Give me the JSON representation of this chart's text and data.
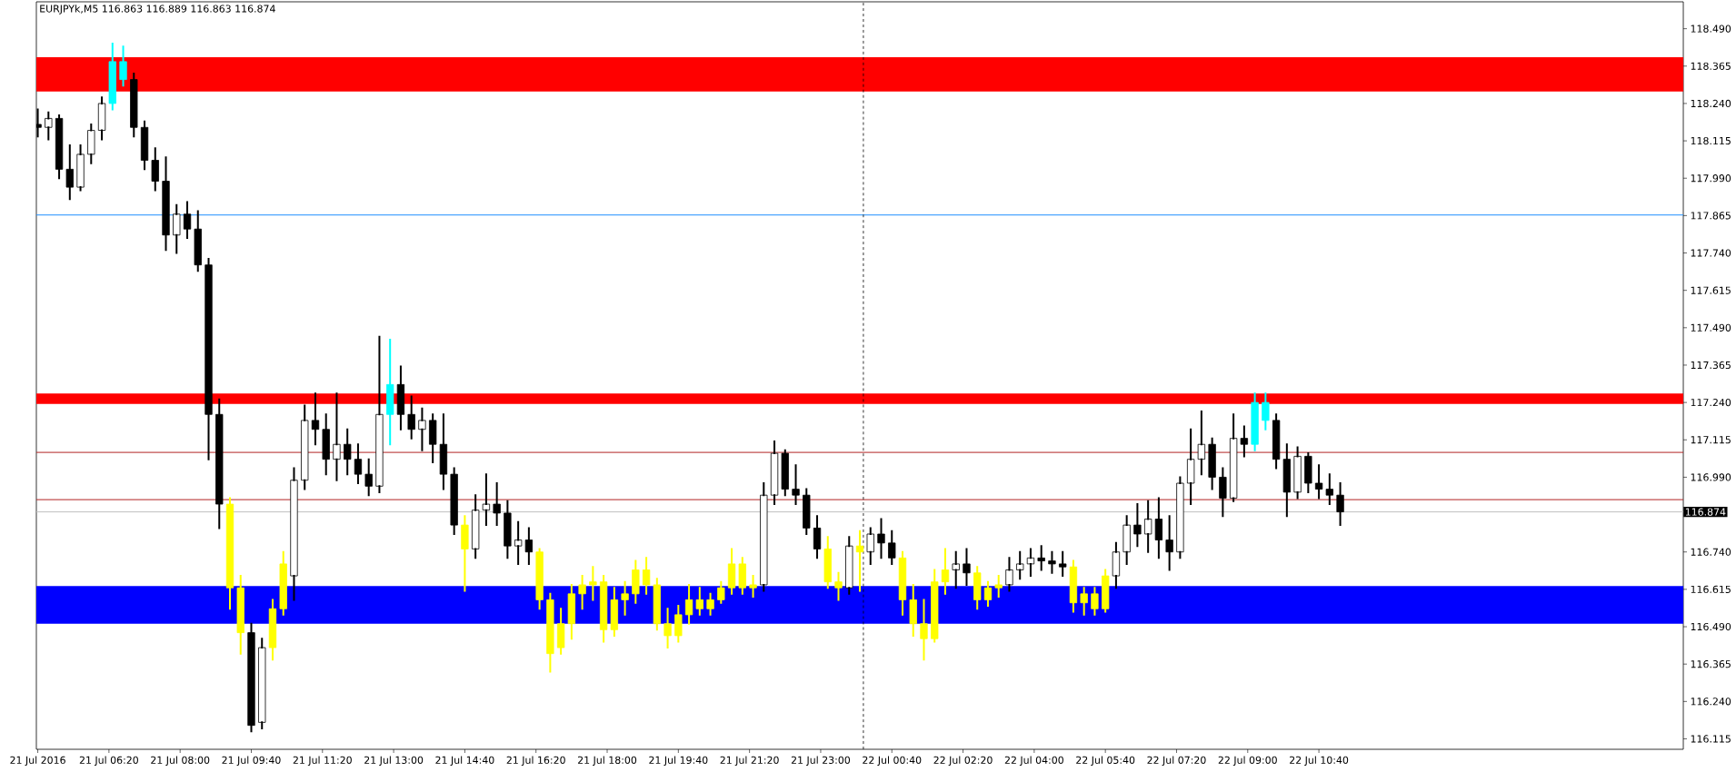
{
  "chart_data": {
    "type": "candlestick",
    "title": "EURJPYk,M5  116.863 116.889 116.863 116.874",
    "x": [
      "2016-07-21T04:40",
      "2016-07-21T04:55",
      "2016-07-21T05:10",
      "2016-07-21T05:25",
      "2016-07-21T05:40",
      "2016-07-21T05:55",
      "2016-07-21T06:10",
      "2016-07-21T06:25",
      "2016-07-21T06:40",
      "2016-07-21T06:55",
      "2016-07-21T07:10",
      "2016-07-21T07:25",
      "2016-07-21T07:40",
      "2016-07-21T07:55",
      "2016-07-21T08:10",
      "2016-07-21T08:25",
      "2016-07-21T08:40",
      "2016-07-21T08:55",
      "2016-07-21T09:10",
      "2016-07-21T09:25",
      "2016-07-21T09:40",
      "2016-07-21T09:55",
      "2016-07-21T10:10",
      "2016-07-21T10:25",
      "2016-07-21T10:40",
      "2016-07-21T10:55",
      "2016-07-21T11:10",
      "2016-07-21T11:25",
      "2016-07-21T11:40",
      "2016-07-21T11:55",
      "2016-07-21T12:10",
      "2016-07-21T12:25",
      "2016-07-21T12:40",
      "2016-07-21T12:55",
      "2016-07-21T13:10",
      "2016-07-21T13:25",
      "2016-07-21T13:40",
      "2016-07-21T13:55",
      "2016-07-21T14:10",
      "2016-07-21T14:25",
      "2016-07-21T14:40",
      "2016-07-21T14:55",
      "2016-07-21T15:10",
      "2016-07-21T15:25",
      "2016-07-21T15:40",
      "2016-07-21T15:55",
      "2016-07-21T16:10",
      "2016-07-21T16:25",
      "2016-07-21T16:40",
      "2016-07-21T16:55",
      "2016-07-21T17:10",
      "2016-07-21T17:25",
      "2016-07-21T17:40",
      "2016-07-21T17:55",
      "2016-07-21T18:10",
      "2016-07-21T18:25",
      "2016-07-21T18:40",
      "2016-07-21T18:55",
      "2016-07-21T19:10",
      "2016-07-21T19:25",
      "2016-07-21T19:40",
      "2016-07-21T19:55",
      "2016-07-21T20:10",
      "2016-07-21T20:25",
      "2016-07-21T20:40",
      "2016-07-21T20:55",
      "2016-07-21T21:10",
      "2016-07-21T21:25",
      "2016-07-21T21:40",
      "2016-07-21T21:55",
      "2016-07-21T22:10",
      "2016-07-21T22:25",
      "2016-07-21T22:40",
      "2016-07-21T22:55",
      "2016-07-21T23:10",
      "2016-07-21T23:25",
      "2016-07-21T23:40",
      "2016-07-21T23:55",
      "2016-07-22T00:10",
      "2016-07-22T00:25",
      "2016-07-22T00:40",
      "2016-07-22T00:55",
      "2016-07-22T01:10",
      "2016-07-22T01:25",
      "2016-07-22T01:40",
      "2016-07-22T01:55",
      "2016-07-22T02:10",
      "2016-07-22T02:25",
      "2016-07-22T02:40",
      "2016-07-22T02:55",
      "2016-07-22T03:10",
      "2016-07-22T03:25",
      "2016-07-22T03:40",
      "2016-07-22T03:55",
      "2016-07-22T04:10",
      "2016-07-22T04:25",
      "2016-07-22T04:40",
      "2016-07-22T04:55",
      "2016-07-22T05:10",
      "2016-07-22T05:25",
      "2016-07-22T05:40",
      "2016-07-22T05:55",
      "2016-07-22T06:10",
      "2016-07-22T06:25",
      "2016-07-22T06:40",
      "2016-07-22T06:55",
      "2016-07-22T07:10",
      "2016-07-22T07:25",
      "2016-07-22T07:40",
      "2016-07-22T07:55",
      "2016-07-22T08:10",
      "2016-07-22T08:25",
      "2016-07-22T08:40",
      "2016-07-22T08:55",
      "2016-07-22T09:10",
      "2016-07-22T09:25",
      "2016-07-22T09:40",
      "2016-07-22T09:55",
      "2016-07-22T10:10",
      "2016-07-22T10:25",
      "2016-07-22T10:40",
      "2016-07-22T10:55",
      "2016-07-22T11:10"
    ],
    "ohlc": [
      [
        118.17,
        118.22,
        118.13,
        118.16
      ],
      [
        118.16,
        118.21,
        118.12,
        118.19
      ],
      [
        118.19,
        118.2,
        117.99,
        118.02
      ],
      [
        118.02,
        118.1,
        117.92,
        117.96
      ],
      [
        117.96,
        118.1,
        117.95,
        118.07
      ],
      [
        118.07,
        118.17,
        118.04,
        118.15
      ],
      [
        118.15,
        118.26,
        118.12,
        118.24
      ],
      [
        118.24,
        118.44,
        118.22,
        118.38
      ],
      [
        118.38,
        118.43,
        118.3,
        118.32
      ],
      [
        118.32,
        118.34,
        118.13,
        118.16
      ],
      [
        118.16,
        118.18,
        118.02,
        118.05
      ],
      [
        118.05,
        118.09,
        117.95,
        117.98
      ],
      [
        117.98,
        118.06,
        117.75,
        117.8
      ],
      [
        117.8,
        117.9,
        117.74,
        117.87
      ],
      [
        117.87,
        117.91,
        117.79,
        117.82
      ],
      [
        117.82,
        117.88,
        117.68,
        117.7
      ],
      [
        117.7,
        117.72,
        117.05,
        117.2
      ],
      [
        117.2,
        117.25,
        116.82,
        116.9
      ],
      [
        116.9,
        116.92,
        116.55,
        116.62
      ],
      [
        116.62,
        116.66,
        116.4,
        116.47
      ],
      [
        116.47,
        116.5,
        116.14,
        116.16
      ],
      [
        116.17,
        116.45,
        116.15,
        116.42
      ],
      [
        116.42,
        116.58,
        116.38,
        116.55
      ],
      [
        116.55,
        116.74,
        116.53,
        116.7
      ],
      [
        116.66,
        117.02,
        116.58,
        116.98
      ],
      [
        116.98,
        117.23,
        116.95,
        117.18
      ],
      [
        117.18,
        117.27,
        117.1,
        117.15
      ],
      [
        117.15,
        117.2,
        117.0,
        117.05
      ],
      [
        117.05,
        117.27,
        116.98,
        117.1
      ],
      [
        117.1,
        117.15,
        117.0,
        117.05
      ],
      [
        117.05,
        117.1,
        116.97,
        117.0
      ],
      [
        117.0,
        117.05,
        116.93,
        116.96
      ],
      [
        116.96,
        117.46,
        116.94,
        117.2
      ],
      [
        117.2,
        117.45,
        117.1,
        117.3
      ],
      [
        117.3,
        117.36,
        117.15,
        117.2
      ],
      [
        117.2,
        117.26,
        117.12,
        117.15
      ],
      [
        117.15,
        117.22,
        117.08,
        117.18
      ],
      [
        117.18,
        117.2,
        117.04,
        117.1
      ],
      [
        117.1,
        117.2,
        116.95,
        117.0
      ],
      [
        117.0,
        117.02,
        116.8,
        116.83
      ],
      [
        116.83,
        116.86,
        116.61,
        116.75
      ],
      [
        116.75,
        116.93,
        116.72,
        116.88
      ],
      [
        116.88,
        117.0,
        116.83,
        116.9
      ],
      [
        116.9,
        116.97,
        116.83,
        116.87
      ],
      [
        116.87,
        116.91,
        116.72,
        116.76
      ],
      [
        116.76,
        116.84,
        116.7,
        116.78
      ],
      [
        116.78,
        116.82,
        116.7,
        116.74
      ],
      [
        116.74,
        116.75,
        116.55,
        116.58
      ],
      [
        116.58,
        116.6,
        116.34,
        116.4
      ],
      [
        116.42,
        116.55,
        116.4,
        116.5
      ],
      [
        116.5,
        116.63,
        116.45,
        116.6
      ],
      [
        116.6,
        116.66,
        116.55,
        116.63
      ],
      [
        116.63,
        116.69,
        116.58,
        116.64
      ],
      [
        116.64,
        116.66,
        116.44,
        116.48
      ],
      [
        116.48,
        116.62,
        116.46,
        116.58
      ],
      [
        116.58,
        116.64,
        116.53,
        116.6
      ],
      [
        116.6,
        116.71,
        116.57,
        116.68
      ],
      [
        116.68,
        116.72,
        116.6,
        116.63
      ],
      [
        116.63,
        116.65,
        116.48,
        116.5
      ],
      [
        116.5,
        116.55,
        116.42,
        116.46
      ],
      [
        116.46,
        116.56,
        116.44,
        116.53
      ],
      [
        116.53,
        116.63,
        116.5,
        116.58
      ],
      [
        116.58,
        116.62,
        116.53,
        116.55
      ],
      [
        116.55,
        116.6,
        116.53,
        116.58
      ],
      [
        116.58,
        116.64,
        116.57,
        116.62
      ],
      [
        116.62,
        116.75,
        116.6,
        116.7
      ],
      [
        116.7,
        116.72,
        116.6,
        116.62
      ],
      [
        116.62,
        116.66,
        116.59,
        116.63
      ],
      [
        116.63,
        116.97,
        116.61,
        116.93
      ],
      [
        116.93,
        117.11,
        116.9,
        117.07
      ],
      [
        117.07,
        117.08,
        116.93,
        116.95
      ],
      [
        116.95,
        117.03,
        116.9,
        116.93
      ],
      [
        116.93,
        116.95,
        116.8,
        116.82
      ],
      [
        116.82,
        116.86,
        116.72,
        116.75
      ],
      [
        116.75,
        116.79,
        116.62,
        116.64
      ],
      [
        116.64,
        116.67,
        116.58,
        116.62
      ],
      [
        116.62,
        116.79,
        116.6,
        116.76
      ],
      [
        116.76,
        116.81,
        116.61,
        116.74
      ],
      [
        116.74,
        116.82,
        116.7,
        116.8
      ],
      [
        116.8,
        116.85,
        116.72,
        116.77
      ],
      [
        116.77,
        116.81,
        116.7,
        116.72
      ],
      [
        116.72,
        116.74,
        116.53,
        116.58
      ],
      [
        116.58,
        116.63,
        116.46,
        116.5
      ],
      [
        116.5,
        116.58,
        116.38,
        116.45
      ],
      [
        116.45,
        116.68,
        116.44,
        116.64
      ],
      [
        116.64,
        116.75,
        116.6,
        116.68
      ],
      [
        116.68,
        116.74,
        116.62,
        116.7
      ],
      [
        116.7,
        116.75,
        116.63,
        116.67
      ],
      [
        116.67,
        116.69,
        116.55,
        116.58
      ],
      [
        116.58,
        116.64,
        116.56,
        116.62
      ],
      [
        116.62,
        116.66,
        116.59,
        116.63
      ],
      [
        116.63,
        116.72,
        116.61,
        116.68
      ],
      [
        116.68,
        116.74,
        116.65,
        116.7
      ],
      [
        116.7,
        116.75,
        116.66,
        116.72
      ],
      [
        116.72,
        116.76,
        116.68,
        116.71
      ],
      [
        116.71,
        116.74,
        116.67,
        116.7
      ],
      [
        116.7,
        116.74,
        116.66,
        116.69
      ],
      [
        116.69,
        116.71,
        116.54,
        116.57
      ],
      [
        116.57,
        116.62,
        116.53,
        116.6
      ],
      [
        116.6,
        116.62,
        116.53,
        116.55
      ],
      [
        116.55,
        116.68,
        116.54,
        116.66
      ],
      [
        116.66,
        116.77,
        116.62,
        116.74
      ],
      [
        116.74,
        116.86,
        116.7,
        116.83
      ],
      [
        116.83,
        116.9,
        116.76,
        116.8
      ],
      [
        116.8,
        116.91,
        116.74,
        116.85
      ],
      [
        116.85,
        116.92,
        116.72,
        116.78
      ],
      [
        116.78,
        116.86,
        116.68,
        116.74
      ],
      [
        116.74,
        116.99,
        116.72,
        116.97
      ],
      [
        116.97,
        117.15,
        116.9,
        117.05
      ],
      [
        117.05,
        117.21,
        117.0,
        117.1
      ],
      [
        117.1,
        117.12,
        116.95,
        116.99
      ],
      [
        116.99,
        117.02,
        116.86,
        116.92
      ],
      [
        116.92,
        117.2,
        116.91,
        117.12
      ],
      [
        117.12,
        117.16,
        117.06,
        117.1
      ],
      [
        117.1,
        117.27,
        117.08,
        117.24
      ],
      [
        117.24,
        117.27,
        117.15,
        117.18
      ],
      [
        117.18,
        117.2,
        117.02,
        117.05
      ],
      [
        117.05,
        117.1,
        116.86,
        116.94
      ],
      [
        116.94,
        117.09,
        116.92,
        117.06
      ],
      [
        117.06,
        117.07,
        116.94,
        116.97
      ],
      [
        116.97,
        117.03,
        116.92,
        116.95
      ],
      [
        116.95,
        117.0,
        116.9,
        116.93
      ],
      [
        116.93,
        116.97,
        116.83,
        116.874
      ]
    ],
    "colors": [
      "#000000",
      "#ffffff",
      "#000000",
      "#000000",
      "#ffffff",
      "#ffffff",
      "#ffffff",
      "#00ffff",
      "#00ffff",
      "#000000",
      "#000000",
      "#000000",
      "#000000",
      "#ffffff",
      "#000000",
      "#000000",
      "#000000",
      "#000000",
      "#ffff00",
      "#ffff00",
      "#000000",
      "#ffffff",
      "#ffff00",
      "#ffff00",
      "#ffffff",
      "#ffffff",
      "#000000",
      "#000000",
      "#ffffff",
      "#000000",
      "#000000",
      "#000000",
      "#ffffff",
      "#00ffff",
      "#000000",
      "#000000",
      "#ffffff",
      "#000000",
      "#000000",
      "#000000",
      "#ffff00",
      "#ffffff",
      "#ffffff",
      "#000000",
      "#000000",
      "#ffffff",
      "#000000",
      "#ffff00",
      "#ffff00",
      "#ffff00",
      "#ffff00",
      "#ffff00",
      "#ffff00",
      "#ffff00",
      "#ffff00",
      "#ffff00",
      "#ffff00",
      "#ffff00",
      "#ffff00",
      "#ffff00",
      "#ffff00",
      "#ffff00",
      "#ffff00",
      "#ffff00",
      "#ffff00",
      "#ffff00",
      "#ffff00",
      "#ffff00",
      "#ffffff",
      "#ffffff",
      "#000000",
      "#000000",
      "#000000",
      "#000000",
      "#ffff00",
      "#ffff00",
      "#ffffff",
      "#ffff00",
      "#ffffff",
      "#000000",
      "#000000",
      "#ffff00",
      "#ffff00",
      "#ffff00",
      "#ffff00",
      "#ffff00",
      "#ffffff",
      "#000000",
      "#ffff00",
      "#ffff00",
      "#ffff00",
      "#ffffff",
      "#ffffff",
      "#ffffff",
      "#000000",
      "#000000",
      "#000000",
      "#ffff00",
      "#ffff00",
      "#ffff00",
      "#ffff00",
      "#ffffff",
      "#ffffff",
      "#000000",
      "#ffffff",
      "#000000",
      "#000000",
      "#ffffff",
      "#ffffff",
      "#ffffff",
      "#000000",
      "#000000",
      "#ffffff",
      "#000000",
      "#00ffff",
      "#00ffff",
      "#000000",
      "#000000",
      "#ffffff",
      "#000000",
      "#000000",
      "#000000",
      "#000000"
    ],
    "xlim": [
      "2016-07-21T04:38",
      "2016-07-22T19:12"
    ],
    "ylim": [
      116.08,
      118.58
    ],
    "xticks": [
      {
        "value": "2016-07-21T04:40",
        "label": "21 Jul 2016"
      },
      {
        "value": "2016-07-21T06:20",
        "label": "21 Jul 06:20"
      },
      {
        "value": "2016-07-21T08:00",
        "label": "21 Jul 08:00"
      },
      {
        "value": "2016-07-21T09:40",
        "label": "21 Jul 09:40"
      },
      {
        "value": "2016-07-21T11:20",
        "label": "21 Jul 11:20"
      },
      {
        "value": "2016-07-21T13:00",
        "label": "21 Jul 13:00"
      },
      {
        "value": "2016-07-21T14:40",
        "label": "21 Jul 14:40"
      },
      {
        "value": "2016-07-21T16:20",
        "label": "21 Jul 16:20"
      },
      {
        "value": "2016-07-21T18:00",
        "label": "21 Jul 18:00"
      },
      {
        "value": "2016-07-21T19:40",
        "label": "21 Jul 19:40"
      },
      {
        "value": "2016-07-21T21:20",
        "label": "21 Jul 21:20"
      },
      {
        "value": "2016-07-21T23:00",
        "label": "21 Jul 23:00"
      },
      {
        "value": "2016-07-22T00:40",
        "label": "22 Jul 00:40"
      },
      {
        "value": "2016-07-22T02:20",
        "label": "22 Jul 02:20"
      },
      {
        "value": "2016-07-22T04:00",
        "label": "22 Jul 04:00"
      },
      {
        "value": "2016-07-22T05:40",
        "label": "22 Jul 05:40"
      },
      {
        "value": "2016-07-22T07:20",
        "label": "22 Jul 07:20"
      },
      {
        "value": "2016-07-22T09:00",
        "label": "22 Jul 09:00"
      },
      {
        "value": "2016-07-22T10:40",
        "label": "22 Jul 10:40"
      }
    ],
    "yticks": [
      116.115,
      {
        "value": 116.24,
        "label": "116.240"
      },
      116.365,
      {
        "value": 116.49,
        "label": "116.490"
      },
      116.615,
      {
        "value": 116.74,
        "label": "116.740"
      },
      {
        "value": 116.99,
        "label": "116.990"
      },
      117.115,
      {
        "value": 117.24,
        "label": "117.240"
      },
      117.365,
      {
        "value": 117.49,
        "label": "117.490"
      },
      117.615,
      {
        "value": 117.74,
        "label": "117.740"
      },
      117.865,
      {
        "value": 117.99,
        "label": "117.990"
      },
      118.115,
      {
        "value": 118.24,
        "label": "118.240"
      },
      118.365,
      {
        "value": 118.49,
        "label": "118.490"
      }
    ],
    "bands": [
      {
        "axis": "y",
        "from": 118.28,
        "to": 118.395,
        "color": "#ff0000"
      },
      {
        "axis": "y",
        "from": 117.235,
        "to": 117.27,
        "color": "#ff0000"
      },
      {
        "axis": "y",
        "from": 116.5,
        "to": 116.626,
        "color": "#0000ff"
      }
    ],
    "ref_lines": [
      {
        "axis": "y",
        "value": 116.874,
        "label": "116.874",
        "color": "#c0c0c0"
      },
      {
        "axis": "y",
        "value": 117.867,
        "color": "#1e90ff"
      },
      {
        "axis": "y",
        "value": 117.073,
        "color": "#b22222"
      },
      {
        "axis": "y",
        "value": 116.915,
        "color": "#b22222"
      },
      {
        "axis": "x",
        "value": "2016-07-22T00:00",
        "color": "#000000",
        "line_style": "dashed"
      }
    ]
  }
}
